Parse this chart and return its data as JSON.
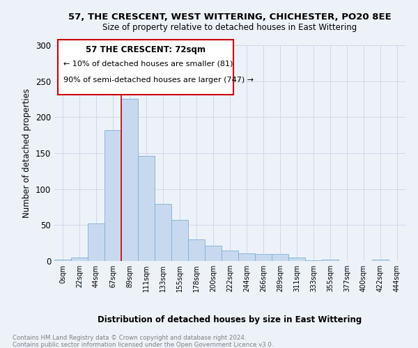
{
  "title1": "57, THE CRESCENT, WEST WITTERING, CHICHESTER, PO20 8EE",
  "title2": "Size of property relative to detached houses in East Wittering",
  "xlabel": "Distribution of detached houses by size in East Wittering",
  "ylabel": "Number of detached properties",
  "footnote": "Contains HM Land Registry data © Crown copyright and database right 2024.\nContains public sector information licensed under the Open Government Licence v3.0.",
  "bar_labels": [
    "0sqm",
    "22sqm",
    "44sqm",
    "67sqm",
    "89sqm",
    "111sqm",
    "133sqm",
    "155sqm",
    "178sqm",
    "200sqm",
    "222sqm",
    "244sqm",
    "266sqm",
    "289sqm",
    "311sqm",
    "333sqm",
    "355sqm",
    "377sqm",
    "400sqm",
    "422sqm",
    "444sqm"
  ],
  "bar_values": [
    2,
    5,
    52,
    182,
    225,
    146,
    79,
    57,
    30,
    21,
    15,
    11,
    10,
    10,
    5,
    1,
    2,
    0,
    0,
    2,
    0
  ],
  "bar_color": "#c8d9ef",
  "bar_edge_color": "#7bafd4",
  "vline_color": "#cc0000",
  "vline_x": 4.0,
  "annotation_title": "57 THE CRESCENT: 72sqm",
  "annotation_line1": "← 10% of detached houses are smaller (81)",
  "annotation_line2": "90% of semi-detached houses are larger (747) →",
  "annotation_box_color": "#cc0000",
  "ylim": [
    0,
    300
  ],
  "yticks": [
    0,
    50,
    100,
    150,
    200,
    250,
    300
  ],
  "background_color": "#edf2f9",
  "grid_color": "#d0d8e8",
  "footnote_color": "#808080"
}
